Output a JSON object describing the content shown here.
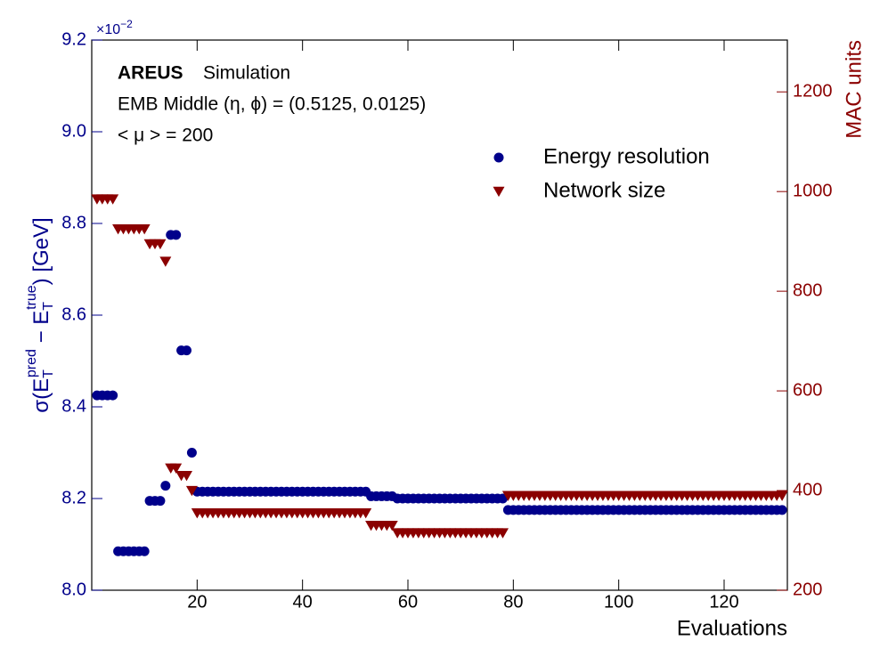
{
  "chart_data": {
    "type": "scatter",
    "annotations": [
      "AREUS",
      "Simulation",
      "EMB Middle (η, ϕ) = (0.5125, 0.0125)",
      "< μ > = 200"
    ],
    "x_label": "Evaluations",
    "y_label_parts": [
      "σ(E",
      "T",
      "pred",
      " − E",
      "T",
      "true",
      ") [GeV]"
    ],
    "y_offset_parts": [
      "×10",
      "−2"
    ],
    "y2_label": "MAC units",
    "legend": "upper right",
    "xlim": [
      0,
      132
    ],
    "xticks": [
      20,
      40,
      60,
      80,
      100,
      120
    ],
    "ylim": [
      8.0,
      9.2
    ],
    "yticks": [
      {
        "value": 8.0,
        "label": "8.0"
      },
      8.2,
      8.4,
      8.6,
      8.8,
      {
        "value": 9.0,
        "label": "9.0"
      },
      9.2
    ],
    "y2lim": [
      200,
      1304
    ],
    "y2ticks": [
      200,
      400,
      600,
      800,
      1000,
      1200
    ],
    "x": [
      1,
      2,
      3,
      4,
      5,
      6,
      7,
      8,
      9,
      10,
      11,
      12,
      13,
      14,
      15,
      16,
      17,
      18,
      19,
      20,
      21,
      22,
      23,
      24,
      25,
      26,
      27,
      28,
      29,
      30,
      31,
      32,
      33,
      34,
      35,
      36,
      37,
      38,
      39,
      40,
      41,
      42,
      43,
      44,
      45,
      46,
      47,
      48,
      49,
      50,
      51,
      52,
      53,
      54,
      55,
      56,
      57,
      58,
      59,
      60,
      61,
      62,
      63,
      64,
      65,
      66,
      67,
      68,
      69,
      70,
      71,
      72,
      73,
      74,
      75,
      76,
      77,
      78,
      79,
      80,
      81,
      82,
      83,
      84,
      85,
      86,
      87,
      88,
      89,
      90,
      91,
      92,
      93,
      94,
      95,
      96,
      97,
      98,
      99,
      100,
      101,
      102,
      103,
      104,
      105,
      106,
      107,
      108,
      109,
      110,
      111,
      112,
      113,
      114,
      115,
      116,
      117,
      118,
      119,
      120,
      121,
      122,
      123,
      124,
      125,
      126,
      127,
      128,
      129,
      130,
      131
    ],
    "series": [
      {
        "name": "Energy resolution",
        "color": "#00008b",
        "marker": "circle",
        "values": [
          8.425,
          8.425,
          8.425,
          8.425,
          8.085,
          8.085,
          8.085,
          8.085,
          8.085,
          8.085,
          8.195,
          8.195,
          8.195,
          8.228,
          8.775,
          8.775,
          8.523,
          8.523,
          8.3,
          8.215,
          8.215,
          8.215,
          8.215,
          8.215,
          8.215,
          8.215,
          8.215,
          8.215,
          8.215,
          8.215,
          8.215,
          8.215,
          8.215,
          8.215,
          8.215,
          8.215,
          8.215,
          8.215,
          8.215,
          8.215,
          8.215,
          8.215,
          8.215,
          8.215,
          8.215,
          8.215,
          8.215,
          8.215,
          8.215,
          8.215,
          8.215,
          8.215,
          8.205,
          8.205,
          8.205,
          8.205,
          8.205,
          8.2,
          8.2,
          8.2,
          8.2,
          8.2,
          8.2,
          8.2,
          8.2,
          8.2,
          8.2,
          8.2,
          8.2,
          8.2,
          8.2,
          8.2,
          8.2,
          8.2,
          8.2,
          8.2,
          8.2,
          8.2,
          8.175,
          8.175,
          8.175,
          8.175,
          8.175,
          8.175,
          8.175,
          8.175,
          8.175,
          8.175,
          8.175,
          8.175,
          8.175,
          8.175,
          8.175,
          8.175,
          8.175,
          8.175,
          8.175,
          8.175,
          8.175,
          8.175,
          8.175,
          8.175,
          8.175,
          8.175,
          8.175,
          8.175,
          8.175,
          8.175,
          8.175,
          8.175,
          8.175,
          8.175,
          8.175,
          8.175,
          8.175,
          8.175,
          8.175,
          8.175,
          8.175,
          8.175,
          8.175,
          8.175,
          8.175,
          8.175,
          8.175,
          8.175,
          8.175,
          8.175,
          8.175,
          8.175,
          8.175
        ]
      },
      {
        "name": "Network size",
        "color": "#8b0000",
        "marker": "triangle-down",
        "axis": "y2",
        "values": [
          985,
          985,
          985,
          985,
          925,
          925,
          925,
          925,
          925,
          925,
          895,
          895,
          895,
          860,
          445,
          445,
          430,
          430,
          400,
          355,
          355,
          355,
          355,
          355,
          355,
          355,
          355,
          355,
          355,
          355,
          355,
          355,
          355,
          355,
          355,
          355,
          355,
          355,
          355,
          355,
          355,
          355,
          355,
          355,
          355,
          355,
          355,
          355,
          355,
          355,
          355,
          355,
          330,
          330,
          330,
          330,
          330,
          315,
          315,
          315,
          315,
          315,
          315,
          315,
          315,
          315,
          315,
          315,
          315,
          315,
          315,
          315,
          315,
          315,
          315,
          315,
          315,
          315,
          390,
          390,
          390,
          390,
          390,
          390,
          390,
          390,
          390,
          390,
          390,
          390,
          390,
          390,
          390,
          390,
          390,
          390,
          390,
          390,
          390,
          390,
          390,
          390,
          390,
          390,
          390,
          390,
          390,
          390,
          390,
          390,
          390,
          390,
          390,
          390,
          390,
          390,
          390,
          390,
          390,
          390,
          390,
          390,
          390,
          390,
          390,
          390,
          390,
          390,
          390,
          390,
          390
        ]
      }
    ]
  }
}
